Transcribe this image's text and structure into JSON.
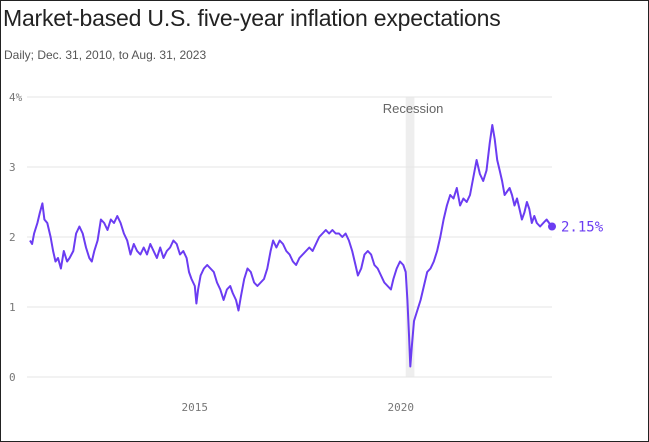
{
  "title": "Market-based U.S. five-year inflation expectations",
  "subtitle": "Daily; Dec. 31, 2010, to Aug. 31, 2023",
  "colors": {
    "line": "#6b3cf2",
    "grid": "#e6e6e6",
    "recession_band": "#eeeeee",
    "text": "#222222",
    "axis_text": "#777777"
  },
  "chart_data": {
    "type": "line",
    "title": "Market-based U.S. five-year inflation expectations",
    "subtitle": "Daily; Dec. 31, 2010, to Aug. 31, 2023",
    "xlabel": "",
    "ylabel": "",
    "ylim": [
      0,
      4
    ],
    "xlim": [
      2011.0,
      2023.67
    ],
    "y_ticks": [
      {
        "value": 0,
        "label": "0"
      },
      {
        "value": 1,
        "label": "1"
      },
      {
        "value": 2,
        "label": "2"
      },
      {
        "value": 3,
        "label": "3"
      },
      {
        "value": 4,
        "label": "4%"
      }
    ],
    "x_ticks": [
      {
        "value": 2015,
        "label": "2015"
      },
      {
        "value": 2020,
        "label": "2020"
      }
    ],
    "grid": true,
    "annotations": [
      {
        "type": "band",
        "x_start": 2020.12,
        "x_end": 2020.33,
        "label": "Recession"
      },
      {
        "type": "end_label",
        "x": 2023.67,
        "y": 2.15,
        "label": "2.15%"
      }
    ],
    "series": [
      {
        "points": [
          [
            2011.0,
            1.95
          ],
          [
            2011.05,
            1.9
          ],
          [
            2011.1,
            2.05
          ],
          [
            2011.18,
            2.2
          ],
          [
            2011.24,
            2.35
          ],
          [
            2011.3,
            2.48
          ],
          [
            2011.35,
            2.25
          ],
          [
            2011.42,
            2.2
          ],
          [
            2011.5,
            2.0
          ],
          [
            2011.56,
            1.8
          ],
          [
            2011.62,
            1.65
          ],
          [
            2011.68,
            1.7
          ],
          [
            2011.75,
            1.55
          ],
          [
            2011.82,
            1.8
          ],
          [
            2011.9,
            1.65
          ],
          [
            2011.96,
            1.7
          ],
          [
            2012.05,
            1.8
          ],
          [
            2012.12,
            2.05
          ],
          [
            2012.2,
            2.15
          ],
          [
            2012.28,
            2.05
          ],
          [
            2012.36,
            1.85
          ],
          [
            2012.44,
            1.7
          ],
          [
            2012.5,
            1.65
          ],
          [
            2012.56,
            1.8
          ],
          [
            2012.64,
            1.95
          ],
          [
            2012.72,
            2.25
          ],
          [
            2012.8,
            2.2
          ],
          [
            2012.88,
            2.1
          ],
          [
            2012.96,
            2.25
          ],
          [
            2013.04,
            2.2
          ],
          [
            2013.12,
            2.3
          ],
          [
            2013.2,
            2.2
          ],
          [
            2013.28,
            2.05
          ],
          [
            2013.36,
            1.95
          ],
          [
            2013.44,
            1.75
          ],
          [
            2013.52,
            1.9
          ],
          [
            2013.6,
            1.8
          ],
          [
            2013.68,
            1.75
          ],
          [
            2013.76,
            1.85
          ],
          [
            2013.84,
            1.75
          ],
          [
            2013.92,
            1.9
          ],
          [
            2014.0,
            1.8
          ],
          [
            2014.08,
            1.7
          ],
          [
            2014.16,
            1.85
          ],
          [
            2014.24,
            1.7
          ],
          [
            2014.32,
            1.8
          ],
          [
            2014.4,
            1.85
          ],
          [
            2014.48,
            1.95
          ],
          [
            2014.56,
            1.9
          ],
          [
            2014.64,
            1.75
          ],
          [
            2014.72,
            1.8
          ],
          [
            2014.8,
            1.7
          ],
          [
            2014.86,
            1.5
          ],
          [
            2014.92,
            1.4
          ],
          [
            2015.0,
            1.3
          ],
          [
            2015.04,
            1.05
          ],
          [
            2015.08,
            1.25
          ],
          [
            2015.14,
            1.45
          ],
          [
            2015.22,
            1.55
          ],
          [
            2015.3,
            1.6
          ],
          [
            2015.38,
            1.55
          ],
          [
            2015.46,
            1.5
          ],
          [
            2015.54,
            1.35
          ],
          [
            2015.62,
            1.25
          ],
          [
            2015.7,
            1.1
          ],
          [
            2015.78,
            1.25
          ],
          [
            2015.86,
            1.3
          ],
          [
            2015.92,
            1.2
          ],
          [
            2016.0,
            1.1
          ],
          [
            2016.06,
            0.95
          ],
          [
            2016.12,
            1.15
          ],
          [
            2016.2,
            1.4
          ],
          [
            2016.28,
            1.55
          ],
          [
            2016.36,
            1.5
          ],
          [
            2016.44,
            1.35
          ],
          [
            2016.52,
            1.3
          ],
          [
            2016.6,
            1.35
          ],
          [
            2016.68,
            1.4
          ],
          [
            2016.76,
            1.55
          ],
          [
            2016.84,
            1.8
          ],
          [
            2016.9,
            1.95
          ],
          [
            2016.98,
            1.85
          ],
          [
            2017.06,
            1.95
          ],
          [
            2017.14,
            1.9
          ],
          [
            2017.22,
            1.8
          ],
          [
            2017.3,
            1.75
          ],
          [
            2017.38,
            1.65
          ],
          [
            2017.46,
            1.6
          ],
          [
            2017.54,
            1.7
          ],
          [
            2017.62,
            1.75
          ],
          [
            2017.7,
            1.8
          ],
          [
            2017.78,
            1.85
          ],
          [
            2017.86,
            1.8
          ],
          [
            2017.94,
            1.9
          ],
          [
            2018.02,
            2.0
          ],
          [
            2018.1,
            2.05
          ],
          [
            2018.18,
            2.1
          ],
          [
            2018.26,
            2.05
          ],
          [
            2018.34,
            2.1
          ],
          [
            2018.42,
            2.05
          ],
          [
            2018.5,
            2.05
          ],
          [
            2018.58,
            2.0
          ],
          [
            2018.66,
            2.05
          ],
          [
            2018.74,
            1.95
          ],
          [
            2018.82,
            1.8
          ],
          [
            2018.9,
            1.6
          ],
          [
            2018.96,
            1.45
          ],
          [
            2019.04,
            1.55
          ],
          [
            2019.12,
            1.75
          ],
          [
            2019.2,
            1.8
          ],
          [
            2019.28,
            1.75
          ],
          [
            2019.36,
            1.6
          ],
          [
            2019.44,
            1.55
          ],
          [
            2019.52,
            1.45
          ],
          [
            2019.6,
            1.35
          ],
          [
            2019.68,
            1.3
          ],
          [
            2019.76,
            1.25
          ],
          [
            2019.82,
            1.4
          ],
          [
            2019.9,
            1.55
          ],
          [
            2019.98,
            1.65
          ],
          [
            2020.06,
            1.6
          ],
          [
            2020.12,
            1.5
          ],
          [
            2020.16,
            1.1
          ],
          [
            2020.2,
            0.6
          ],
          [
            2020.23,
            0.15
          ],
          [
            2020.27,
            0.45
          ],
          [
            2020.32,
            0.8
          ],
          [
            2020.4,
            0.95
          ],
          [
            2020.48,
            1.1
          ],
          [
            2020.56,
            1.3
          ],
          [
            2020.64,
            1.5
          ],
          [
            2020.72,
            1.55
          ],
          [
            2020.8,
            1.65
          ],
          [
            2020.88,
            1.8
          ],
          [
            2020.96,
            2.0
          ],
          [
            2021.04,
            2.25
          ],
          [
            2021.12,
            2.45
          ],
          [
            2021.2,
            2.6
          ],
          [
            2021.28,
            2.55
          ],
          [
            2021.36,
            2.7
          ],
          [
            2021.44,
            2.45
          ],
          [
            2021.52,
            2.55
          ],
          [
            2021.6,
            2.5
          ],
          [
            2021.68,
            2.6
          ],
          [
            2021.76,
            2.85
          ],
          [
            2021.84,
            3.1
          ],
          [
            2021.92,
            2.9
          ],
          [
            2022.0,
            2.8
          ],
          [
            2022.08,
            2.95
          ],
          [
            2022.16,
            3.35
          ],
          [
            2022.22,
            3.6
          ],
          [
            2022.28,
            3.4
          ],
          [
            2022.34,
            3.1
          ],
          [
            2022.4,
            2.95
          ],
          [
            2022.46,
            2.8
          ],
          [
            2022.52,
            2.6
          ],
          [
            2022.58,
            2.65
          ],
          [
            2022.64,
            2.7
          ],
          [
            2022.7,
            2.6
          ],
          [
            2022.76,
            2.45
          ],
          [
            2022.82,
            2.55
          ],
          [
            2022.88,
            2.4
          ],
          [
            2022.94,
            2.25
          ],
          [
            2023.0,
            2.35
          ],
          [
            2023.06,
            2.5
          ],
          [
            2023.12,
            2.4
          ],
          [
            2023.18,
            2.2
          ],
          [
            2023.24,
            2.3
          ],
          [
            2023.3,
            2.2
          ],
          [
            2023.38,
            2.15
          ],
          [
            2023.46,
            2.2
          ],
          [
            2023.54,
            2.25
          ],
          [
            2023.6,
            2.2
          ],
          [
            2023.67,
            2.15
          ]
        ]
      }
    ]
  }
}
